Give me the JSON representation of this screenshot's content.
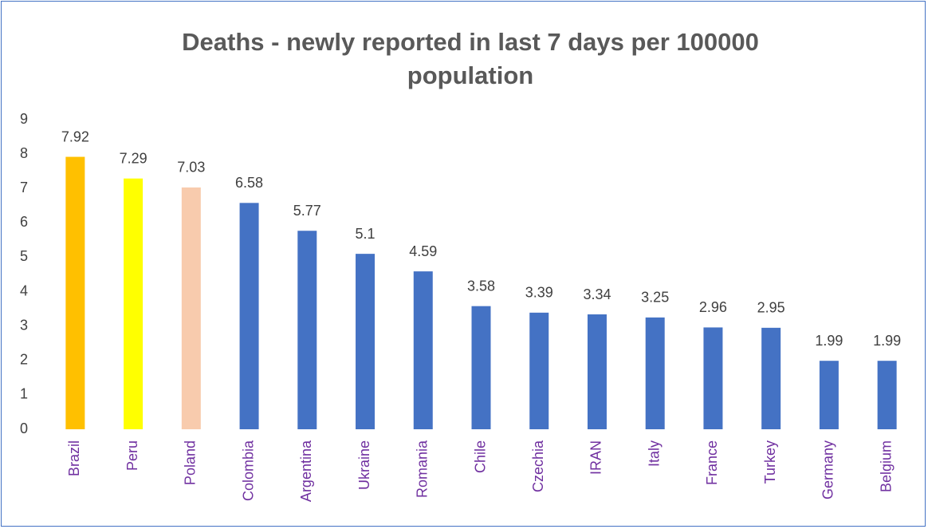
{
  "chart_data": {
    "type": "bar",
    "title": "Deaths - newly reported in last 7 days per 100000 population",
    "categories": [
      "Brazil",
      "Peru",
      "Poland",
      "Colombia",
      "Argentina",
      "Ukraine",
      "Romania",
      "Chile",
      "Czechia",
      "IRAN",
      "Italy",
      "France",
      "Turkey",
      "Germany",
      "Belgium"
    ],
    "values": [
      7.92,
      7.29,
      7.03,
      6.58,
      5.77,
      5.1,
      4.59,
      3.58,
      3.39,
      3.34,
      3.25,
      2.96,
      2.95,
      1.99,
      1.99
    ],
    "colors": [
      "#ffc000",
      "#ffff00",
      "#f8cbad",
      "#4472c4",
      "#4472c4",
      "#4472c4",
      "#4472c4",
      "#4472c4",
      "#4472c4",
      "#4472c4",
      "#4472c4",
      "#4472c4",
      "#4472c4",
      "#4472c4",
      "#4472c4"
    ],
    "ylim": [
      0,
      9
    ],
    "yticks": [
      0,
      1,
      2,
      3,
      4,
      5,
      6,
      7,
      8,
      9
    ],
    "grid": false
  }
}
